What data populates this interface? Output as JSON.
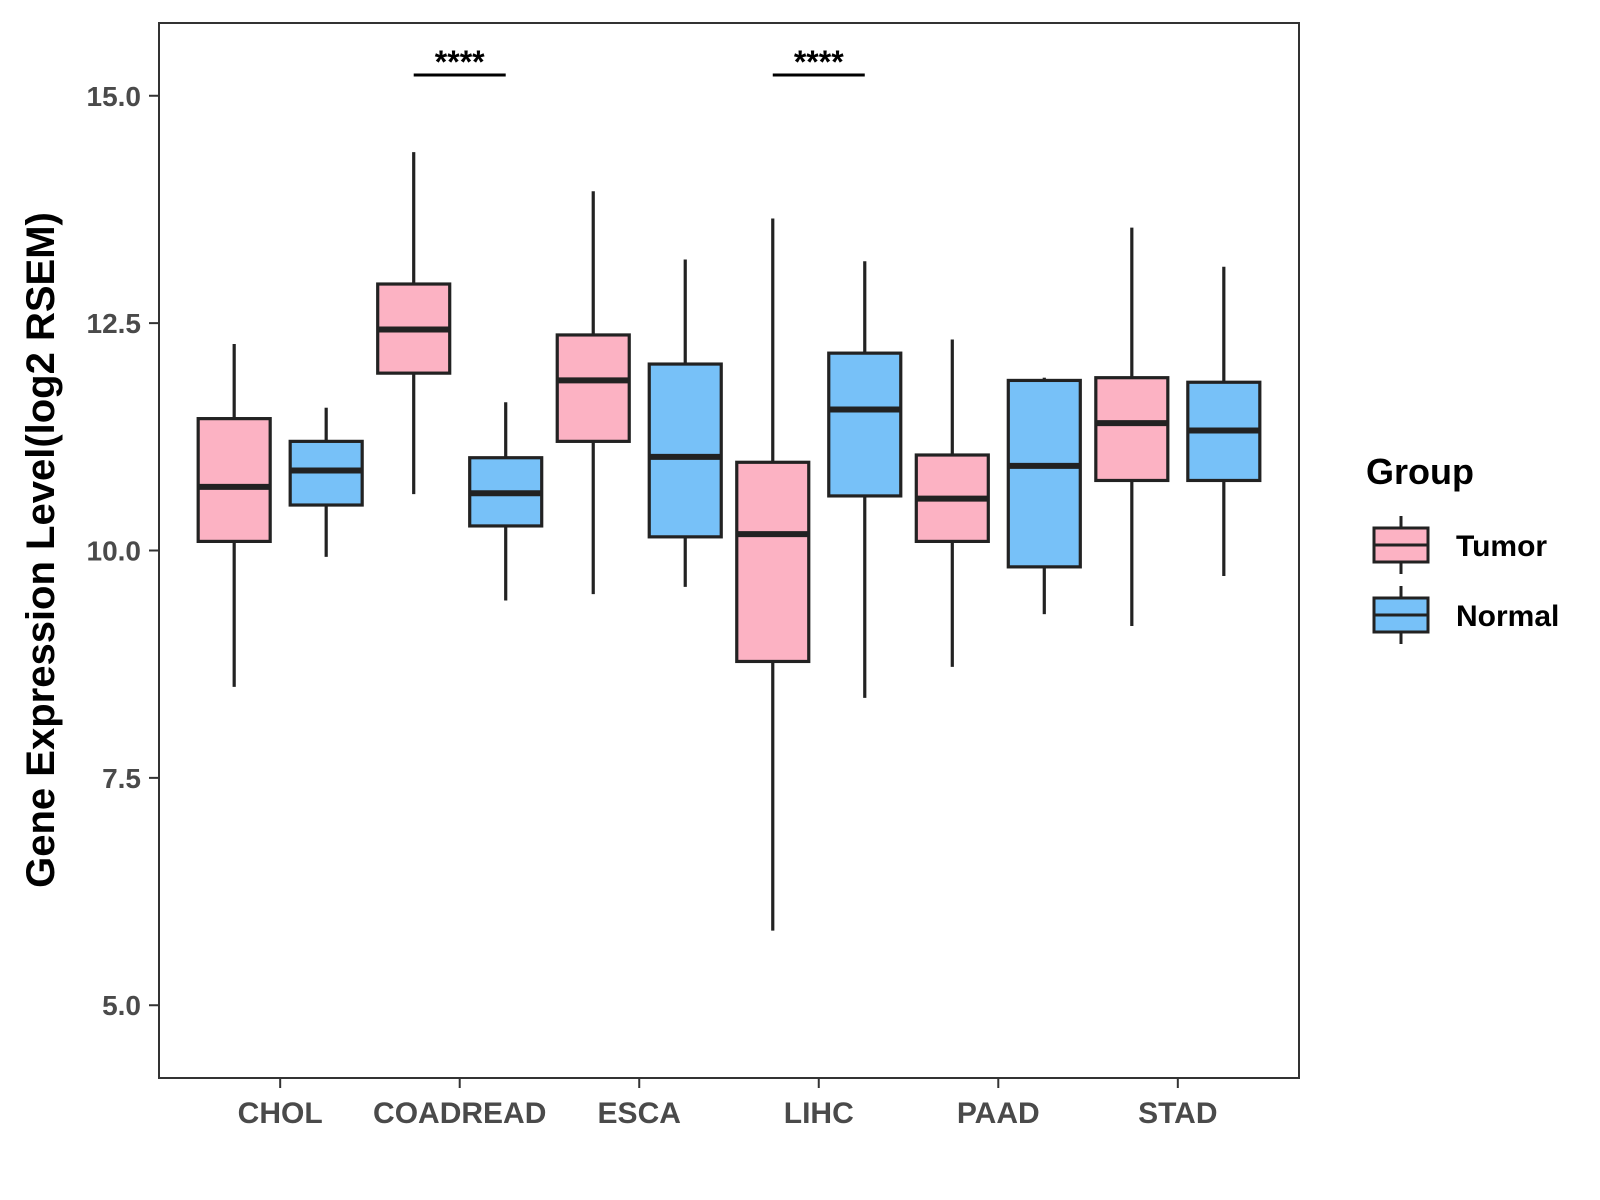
{
  "chart_data": {
    "type": "boxplot",
    "title": "",
    "xlabel": "",
    "ylabel": "Gene Expression Level(log2 RSEM)",
    "ylim": [
      4.2,
      15.8
    ],
    "yticks": [
      "5.0",
      "7.5",
      "10.0",
      "12.5",
      "15.0"
    ],
    "ytick_values": [
      5.0,
      7.5,
      10.0,
      12.5,
      15.0
    ],
    "categories": [
      "CHOL",
      "COADREAD",
      "ESCA",
      "LIHC",
      "PAAD",
      "STAD"
    ],
    "legend": {
      "title": "Group",
      "position": "right",
      "items": [
        {
          "name": "Tumor",
          "color": "#fcb2c3"
        },
        {
          "name": "Normal",
          "color": "#77c1f8"
        }
      ]
    },
    "series": [
      {
        "name": "Tumor",
        "color": "#fcb2c3",
        "boxes": [
          {
            "min": 8.5,
            "q1": 10.1,
            "median": 10.7,
            "q3": 11.45,
            "max": 12.27
          },
          {
            "min": 10.62,
            "q1": 11.95,
            "median": 12.43,
            "q3": 12.93,
            "max": 14.38
          },
          {
            "min": 9.52,
            "q1": 11.2,
            "median": 11.87,
            "q3": 12.37,
            "max": 13.95
          },
          {
            "min": 5.82,
            "q1": 8.78,
            "median": 10.18,
            "q3": 10.97,
            "max": 13.65
          },
          {
            "min": 8.72,
            "q1": 10.1,
            "median": 10.57,
            "q3": 11.05,
            "max": 12.32
          },
          {
            "min": 9.17,
            "q1": 10.77,
            "median": 11.4,
            "q3": 11.9,
            "max": 13.55
          }
        ]
      },
      {
        "name": "Normal",
        "color": "#77c1f8",
        "boxes": [
          {
            "min": 9.93,
            "q1": 10.5,
            "median": 10.88,
            "q3": 11.2,
            "max": 11.57
          },
          {
            "min": 9.45,
            "q1": 10.27,
            "median": 10.63,
            "q3": 11.02,
            "max": 11.63
          },
          {
            "min": 9.6,
            "q1": 10.15,
            "median": 11.03,
            "q3": 12.05,
            "max": 13.2
          },
          {
            "min": 8.38,
            "q1": 10.6,
            "median": 11.55,
            "q3": 12.17,
            "max": 13.18
          },
          {
            "min": 9.3,
            "q1": 9.82,
            "median": 10.93,
            "q3": 11.87,
            "max": 11.9
          },
          {
            "min": 9.72,
            "q1": 10.77,
            "median": 11.32,
            "q3": 11.85,
            "max": 13.12
          }
        ]
      }
    ],
    "significance": [
      {
        "category": "COADREAD",
        "label": "****"
      },
      {
        "category": "LIHC",
        "label": "****"
      }
    ]
  }
}
